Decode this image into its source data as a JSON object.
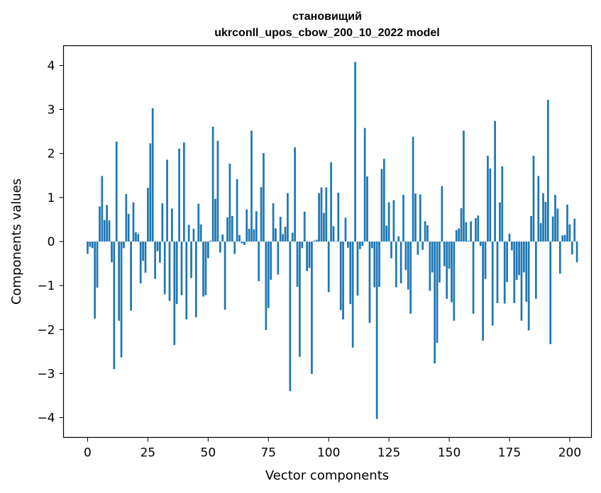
{
  "chart_data": {
    "type": "bar",
    "title": "становищий",
    "subtitle": "ukrconll_upos_cbow_200_10_2022 model",
    "xlabel": "Vector components",
    "ylabel": "Components values",
    "xlim": [
      -10,
      209
    ],
    "ylim": [
      -4.45,
      4.45
    ],
    "xticks": [
      0,
      25,
      50,
      75,
      100,
      125,
      150,
      175,
      200
    ],
    "yticks": [
      -4,
      -3,
      -2,
      -1,
      0,
      1,
      2,
      3,
      4
    ],
    "ytick_labels": [
      "−4",
      "−3",
      "−2",
      "−1",
      "0",
      "1",
      "2",
      "3",
      "4"
    ],
    "bar_color": "#1f77b4",
    "grid": false,
    "values": [
      -0.28,
      -0.12,
      -0.15,
      -1.75,
      -1.05,
      0.8,
      1.49,
      0.49,
      0.83,
      0.48,
      -0.47,
      -2.9,
      2.27,
      -1.8,
      -2.63,
      -0.15,
      1.08,
      0.63,
      -1.57,
      0.89,
      0.21,
      0.17,
      -0.95,
      -0.44,
      -0.71,
      1.22,
      2.23,
      3.03,
      -0.85,
      -0.22,
      -0.48,
      0.87,
      -1.2,
      1.86,
      -1.35,
      0.75,
      -2.35,
      -1.42,
      2.11,
      -1.22,
      2.25,
      -1.77,
      0.38,
      -0.83,
      0.29,
      -1.72,
      0.86,
      0.39,
      -1.25,
      -1.22,
      -0.38,
      0.02,
      2.61,
      0.97,
      2.29,
      -0.25,
      0.16,
      -1.55,
      0.55,
      1.77,
      0.58,
      -0.28,
      1.42,
      0.15,
      -0.04,
      -0.08,
      0.73,
      0.29,
      2.52,
      0.28,
      0.69,
      -0.9,
      1.24,
      2.01,
      -2.01,
      -1.51,
      -0.87,
      0.87,
      0.3,
      -0.75,
      0.56,
      0.17,
      0.34,
      1.1,
      -3.4,
      0.2,
      2.14,
      -1.03,
      -2.62,
      -0.15,
      0.68,
      -0.67,
      -0.6,
      -3.01,
      0.02,
      0.04,
      1.1,
      1.23,
      0.65,
      1.23,
      -1.15,
      1.8,
      0.35,
      0.01,
      1.11,
      -1.56,
      -1.77,
      0.54,
      -0.14,
      -1.42,
      -2.41,
      4.08,
      -1.23,
      -0.17,
      -0.1,
      2.58,
      1.48,
      -1.85,
      -0.15,
      -1.04,
      -4.03,
      -1.03,
      1.65,
      1.88,
      0.36,
      0.89,
      -0.38,
      0.94,
      -1.04,
      0.12,
      -0.95,
      1.06,
      -0.65,
      -1.09,
      -1.64,
      2.38,
      1.09,
      -0.3,
      1.07,
      -0.19,
      0.46,
      0.37,
      -1.12,
      -0.7,
      -2.77,
      -2.3,
      -0.93,
      1.26,
      -0.56,
      -1.3,
      -0.62,
      -1.38,
      -1.8,
      0.26,
      0.3,
      0.76,
      2.52,
      0.44,
      0.02,
      0.46,
      -1.64,
      0.53,
      0.59,
      -0.1,
      -2.25,
      -0.85,
      1.95,
      1.66,
      -1.91,
      2.74,
      -1.4,
      0.89,
      1.71,
      -1.41,
      -0.92,
      0.18,
      -0.2,
      -1.4,
      -0.87,
      -0.76,
      -1.8,
      -0.7,
      -1.37,
      -2.02,
      0.58,
      1.95,
      -1.3,
      1.49,
      0.42,
      1.1,
      0.9,
      3.22,
      -2.33,
      0.57,
      1.06,
      0.75,
      -0.73,
      0.14,
      0.15,
      0.84,
      0.39,
      -0.29,
      0.52,
      -0.47
    ]
  }
}
